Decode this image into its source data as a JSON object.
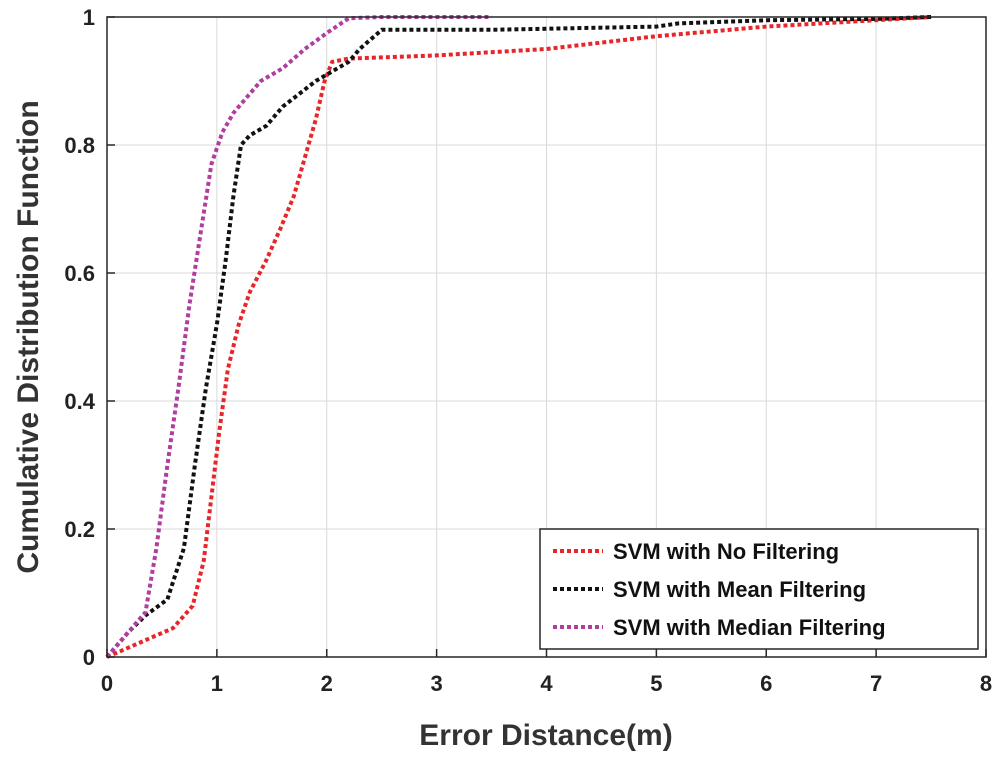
{
  "chart_data": {
    "type": "line",
    "title": "",
    "xlabel": "Error Distance(m)",
    "ylabel": "Cumulative Distribution Function",
    "xlim": [
      0,
      8
    ],
    "ylim": [
      0,
      1
    ],
    "grid": true,
    "legend_position": "bottom-right",
    "x_ticks": [
      "0",
      "1",
      "2",
      "3",
      "4",
      "5",
      "6",
      "7",
      "8"
    ],
    "y_ticks": [
      "0",
      "0.2",
      "0.4",
      "0.6",
      "0.8",
      "1"
    ],
    "series": [
      {
        "name": "SVM with No Filtering",
        "color": "#e8262a",
        "points": [
          [
            0,
            0
          ],
          [
            0.2,
            0.015
          ],
          [
            0.4,
            0.03
          ],
          [
            0.6,
            0.045
          ],
          [
            0.78,
            0.08
          ],
          [
            0.88,
            0.15
          ],
          [
            0.95,
            0.25
          ],
          [
            1.02,
            0.35
          ],
          [
            1.1,
            0.45
          ],
          [
            1.2,
            0.52
          ],
          [
            1.3,
            0.57
          ],
          [
            1.45,
            0.62
          ],
          [
            1.58,
            0.67
          ],
          [
            1.7,
            0.72
          ],
          [
            1.8,
            0.78
          ],
          [
            1.9,
            0.84
          ],
          [
            1.98,
            0.9
          ],
          [
            2.05,
            0.93
          ],
          [
            2.2,
            0.935
          ],
          [
            3.0,
            0.94
          ],
          [
            4.0,
            0.95
          ],
          [
            5.0,
            0.97
          ],
          [
            6.0,
            0.985
          ],
          [
            7.0,
            0.995
          ],
          [
            7.5,
            1.0
          ]
        ]
      },
      {
        "name": "SVM with Mean Filtering",
        "color": "#111111",
        "points": [
          [
            0,
            0
          ],
          [
            0.2,
            0.04
          ],
          [
            0.35,
            0.065
          ],
          [
            0.55,
            0.09
          ],
          [
            0.7,
            0.17
          ],
          [
            0.8,
            0.3
          ],
          [
            0.9,
            0.42
          ],
          [
            1.0,
            0.52
          ],
          [
            1.08,
            0.62
          ],
          [
            1.15,
            0.72
          ],
          [
            1.22,
            0.8
          ],
          [
            1.3,
            0.815
          ],
          [
            1.45,
            0.83
          ],
          [
            1.6,
            0.86
          ],
          [
            1.75,
            0.88
          ],
          [
            1.9,
            0.9
          ],
          [
            2.05,
            0.915
          ],
          [
            2.2,
            0.93
          ],
          [
            2.3,
            0.95
          ],
          [
            2.4,
            0.965
          ],
          [
            2.5,
            0.98
          ],
          [
            3.5,
            0.98
          ],
          [
            5.0,
            0.985
          ],
          [
            5.2,
            0.99
          ],
          [
            6.0,
            0.995
          ],
          [
            7.0,
            0.997
          ],
          [
            7.5,
            1.0
          ]
        ]
      },
      {
        "name": "SVM with Median Filtering",
        "color": "#b13da0",
        "points": [
          [
            0,
            0
          ],
          [
            0.15,
            0.03
          ],
          [
            0.35,
            0.07
          ],
          [
            0.45,
            0.17
          ],
          [
            0.55,
            0.3
          ],
          [
            0.65,
            0.42
          ],
          [
            0.75,
            0.55
          ],
          [
            0.85,
            0.66
          ],
          [
            0.95,
            0.77
          ],
          [
            1.05,
            0.82
          ],
          [
            1.15,
            0.85
          ],
          [
            1.3,
            0.88
          ],
          [
            1.4,
            0.9
          ],
          [
            1.6,
            0.92
          ],
          [
            1.8,
            0.95
          ],
          [
            2.0,
            0.975
          ],
          [
            2.2,
            0.998
          ],
          [
            2.5,
            1.0
          ],
          [
            3.0,
            1.0
          ],
          [
            3.5,
            1.0
          ]
        ]
      }
    ]
  }
}
